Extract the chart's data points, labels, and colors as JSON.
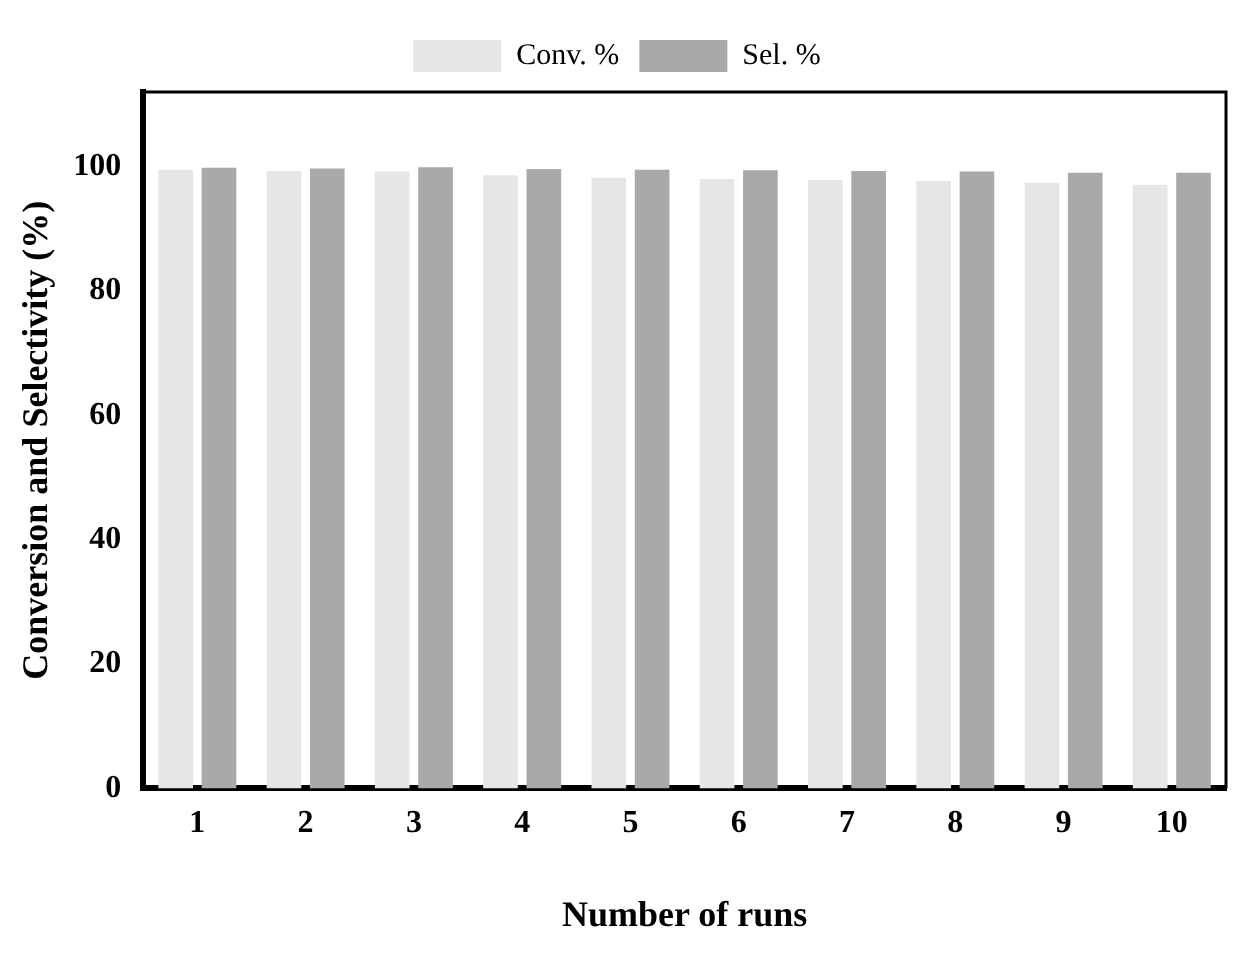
{
  "chart_data": {
    "type": "bar",
    "xlabel": "Number of runs",
    "ylabel": "Conversion and Selectivity (%)",
    "categories": [
      "1",
      "2",
      "3",
      "4",
      "5",
      "6",
      "7",
      "8",
      "9",
      "10"
    ],
    "series": [
      {
        "name": "Conv. %",
        "color": "#e6e6e6",
        "values": [
          99.5,
          99.3,
          99.2,
          98.6,
          98.2,
          98.0,
          97.9,
          97.7,
          97.4,
          97.1
        ]
      },
      {
        "name": "Sel. %",
        "color": "#a9a9a9",
        "values": [
          99.8,
          99.7,
          99.9,
          99.6,
          99.5,
          99.4,
          99.3,
          99.2,
          99.0,
          99.0
        ]
      }
    ],
    "ylim": [
      0,
      112
    ],
    "yticks": [
      0,
      20,
      40,
      60,
      80,
      100
    ],
    "grid": false,
    "legend": "top"
  }
}
